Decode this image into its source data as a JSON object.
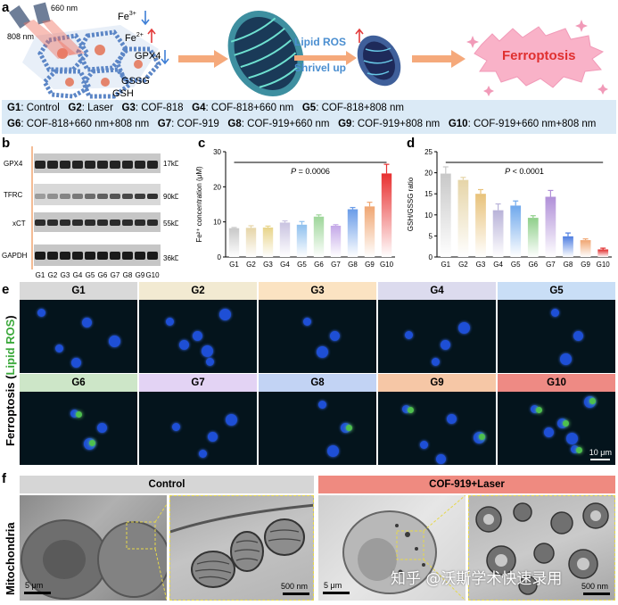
{
  "panel_letters": {
    "a": "a",
    "b": "b",
    "c": "c",
    "d": "d",
    "e": "e",
    "f": "f"
  },
  "schema": {
    "laser_660": "660 nm",
    "laser_808": "808 nm",
    "fe3": "Fe",
    "fe3_sup": "3+",
    "fe2": "Fe",
    "fe2_sup": "2+",
    "gpx4": "GPX4",
    "gssg": "GSSG",
    "gsh": "GSH",
    "lipid_ros": "Lipid ROS",
    "shrivel": "Shrivel up",
    "ferroptosis": "Ferroptosis",
    "colors": {
      "arrow_up": "#e33b3b",
      "arrow_down": "#3e7fd6",
      "text_blue": "#4a8ed0",
      "burst": "#f7a7c2",
      "burst_text": "#e03030"
    }
  },
  "legend": {
    "row1": [
      {
        "key": "G1",
        "val": ": Control"
      },
      {
        "key": "G2",
        "val": ": Laser"
      },
      {
        "key": "G3",
        "val": ": COF-818"
      },
      {
        "key": "G4",
        "val": ": COF-818+660 nm"
      },
      {
        "key": "G5",
        "val": ": COF-818+808 nm"
      }
    ],
    "row2": [
      {
        "key": "G6",
        "val": ": COF-818+660 nm+808 nm"
      },
      {
        "key": "G7",
        "val": ": COF-919"
      },
      {
        "key": "G8",
        "val": ": COF-919+660 nm"
      },
      {
        "key": "G9",
        "val": ": COF-919+808 nm"
      },
      {
        "key": "G10",
        "val": ": COF-919+660 nm+808 nm"
      }
    ]
  },
  "western": {
    "proteins": [
      "GPX4",
      "TFRC",
      "xCT",
      "GAPDH"
    ],
    "sizes": [
      "17kDa",
      "90kDa",
      "55kDa",
      "36kDa"
    ],
    "lanes": [
      "G1",
      "G2",
      "G3",
      "G4",
      "G5",
      "G6",
      "G7",
      "G8",
      "G9",
      "G10"
    ]
  },
  "chart_data": [
    {
      "type": "bar",
      "panel": "c",
      "categories": [
        "G1",
        "G2",
        "G3",
        "G4",
        "G5",
        "G6",
        "G7",
        "G8",
        "G9",
        "G10"
      ],
      "values": [
        8.2,
        8.3,
        8.4,
        9.8,
        9.2,
        11.5,
        8.9,
        13.6,
        14.4,
        23.8
      ],
      "errors": [
        0.2,
        0.6,
        0.4,
        0.5,
        0.9,
        0.5,
        0.3,
        0.5,
        1.2,
        2.6
      ],
      "ylabel": "Fe²⁺ concentration (μM)",
      "ylim": [
        0,
        30
      ],
      "yticks": [
        "0",
        "10",
        "20",
        "30"
      ],
      "annotation": {
        "p_label": "P",
        "p_value": " = 0.0006"
      },
      "colors": [
        "#c8c8c8",
        "#e6d5a8",
        "#e8d48a",
        "#c9c3e0",
        "#8fc0ee",
        "#9ed69a",
        "#c4a8e8",
        "#6a9ce8",
        "#f0a672",
        "#e83030"
      ]
    },
    {
      "type": "bar",
      "panel": "d",
      "categories": [
        "G1",
        "G2",
        "G3",
        "G4",
        "G5",
        "G6",
        "G7",
        "G8",
        "G9",
        "G10"
      ],
      "values": [
        19.8,
        18.3,
        15.0,
        11.1,
        12.2,
        9.3,
        14.3,
        4.9,
        4.0,
        1.8
      ],
      "errors": [
        1.6,
        0.6,
        1.0,
        1.5,
        1.1,
        0.5,
        1.5,
        0.8,
        0.3,
        0.3
      ],
      "ylabel": "GSH/GSSG ratio",
      "ylim": [
        0,
        25
      ],
      "yticks": [
        "0",
        "5",
        "10",
        "15",
        "20",
        "25"
      ],
      "annotation": {
        "p_label": "P",
        "p_value": " < 0.0001"
      },
      "colors": [
        "#c8c8c8",
        "#e6d5a8",
        "#e8c27a",
        "#b8b2d8",
        "#6fa8ec",
        "#8fcf8a",
        "#b08fd8",
        "#4f7ee0",
        "#f0a672",
        "#e02a2a"
      ]
    }
  ],
  "fluor": {
    "side_label_prefix": "Ferroptosis (",
    "side_label_colored": "Lipid ROS",
    "side_label_suffix": ")",
    "row1": [
      {
        "label": "G1",
        "color": "#d9d9d9"
      },
      {
        "label": "G2",
        "color": "#f2ead2"
      },
      {
        "label": "G3",
        "color": "#fbe3c2"
      },
      {
        "label": "G4",
        "color": "#dcdbee"
      },
      {
        "label": "G5",
        "color": "#c9def6"
      }
    ],
    "row2": [
      {
        "label": "G6",
        "color": "#cde6c8"
      },
      {
        "label": "G7",
        "color": "#e3d3f4"
      },
      {
        "label": "G8",
        "color": "#c2d3f4"
      },
      {
        "label": "G9",
        "color": "#f6c7a6"
      },
      {
        "label": "G10",
        "color": "#ee8a84"
      }
    ],
    "scale": "10 μm"
  },
  "tem": {
    "side_label": "Mitochondria",
    "control": "Control",
    "treated": "COF-919+Laser",
    "scale_5um": "5 μm",
    "scale_500nm": "500 nm",
    "watermark": "知乎 @沃斯学术快速录用",
    "colors": {
      "control_header": "#d6d6d6",
      "treated_header": "#ef8a80"
    }
  }
}
